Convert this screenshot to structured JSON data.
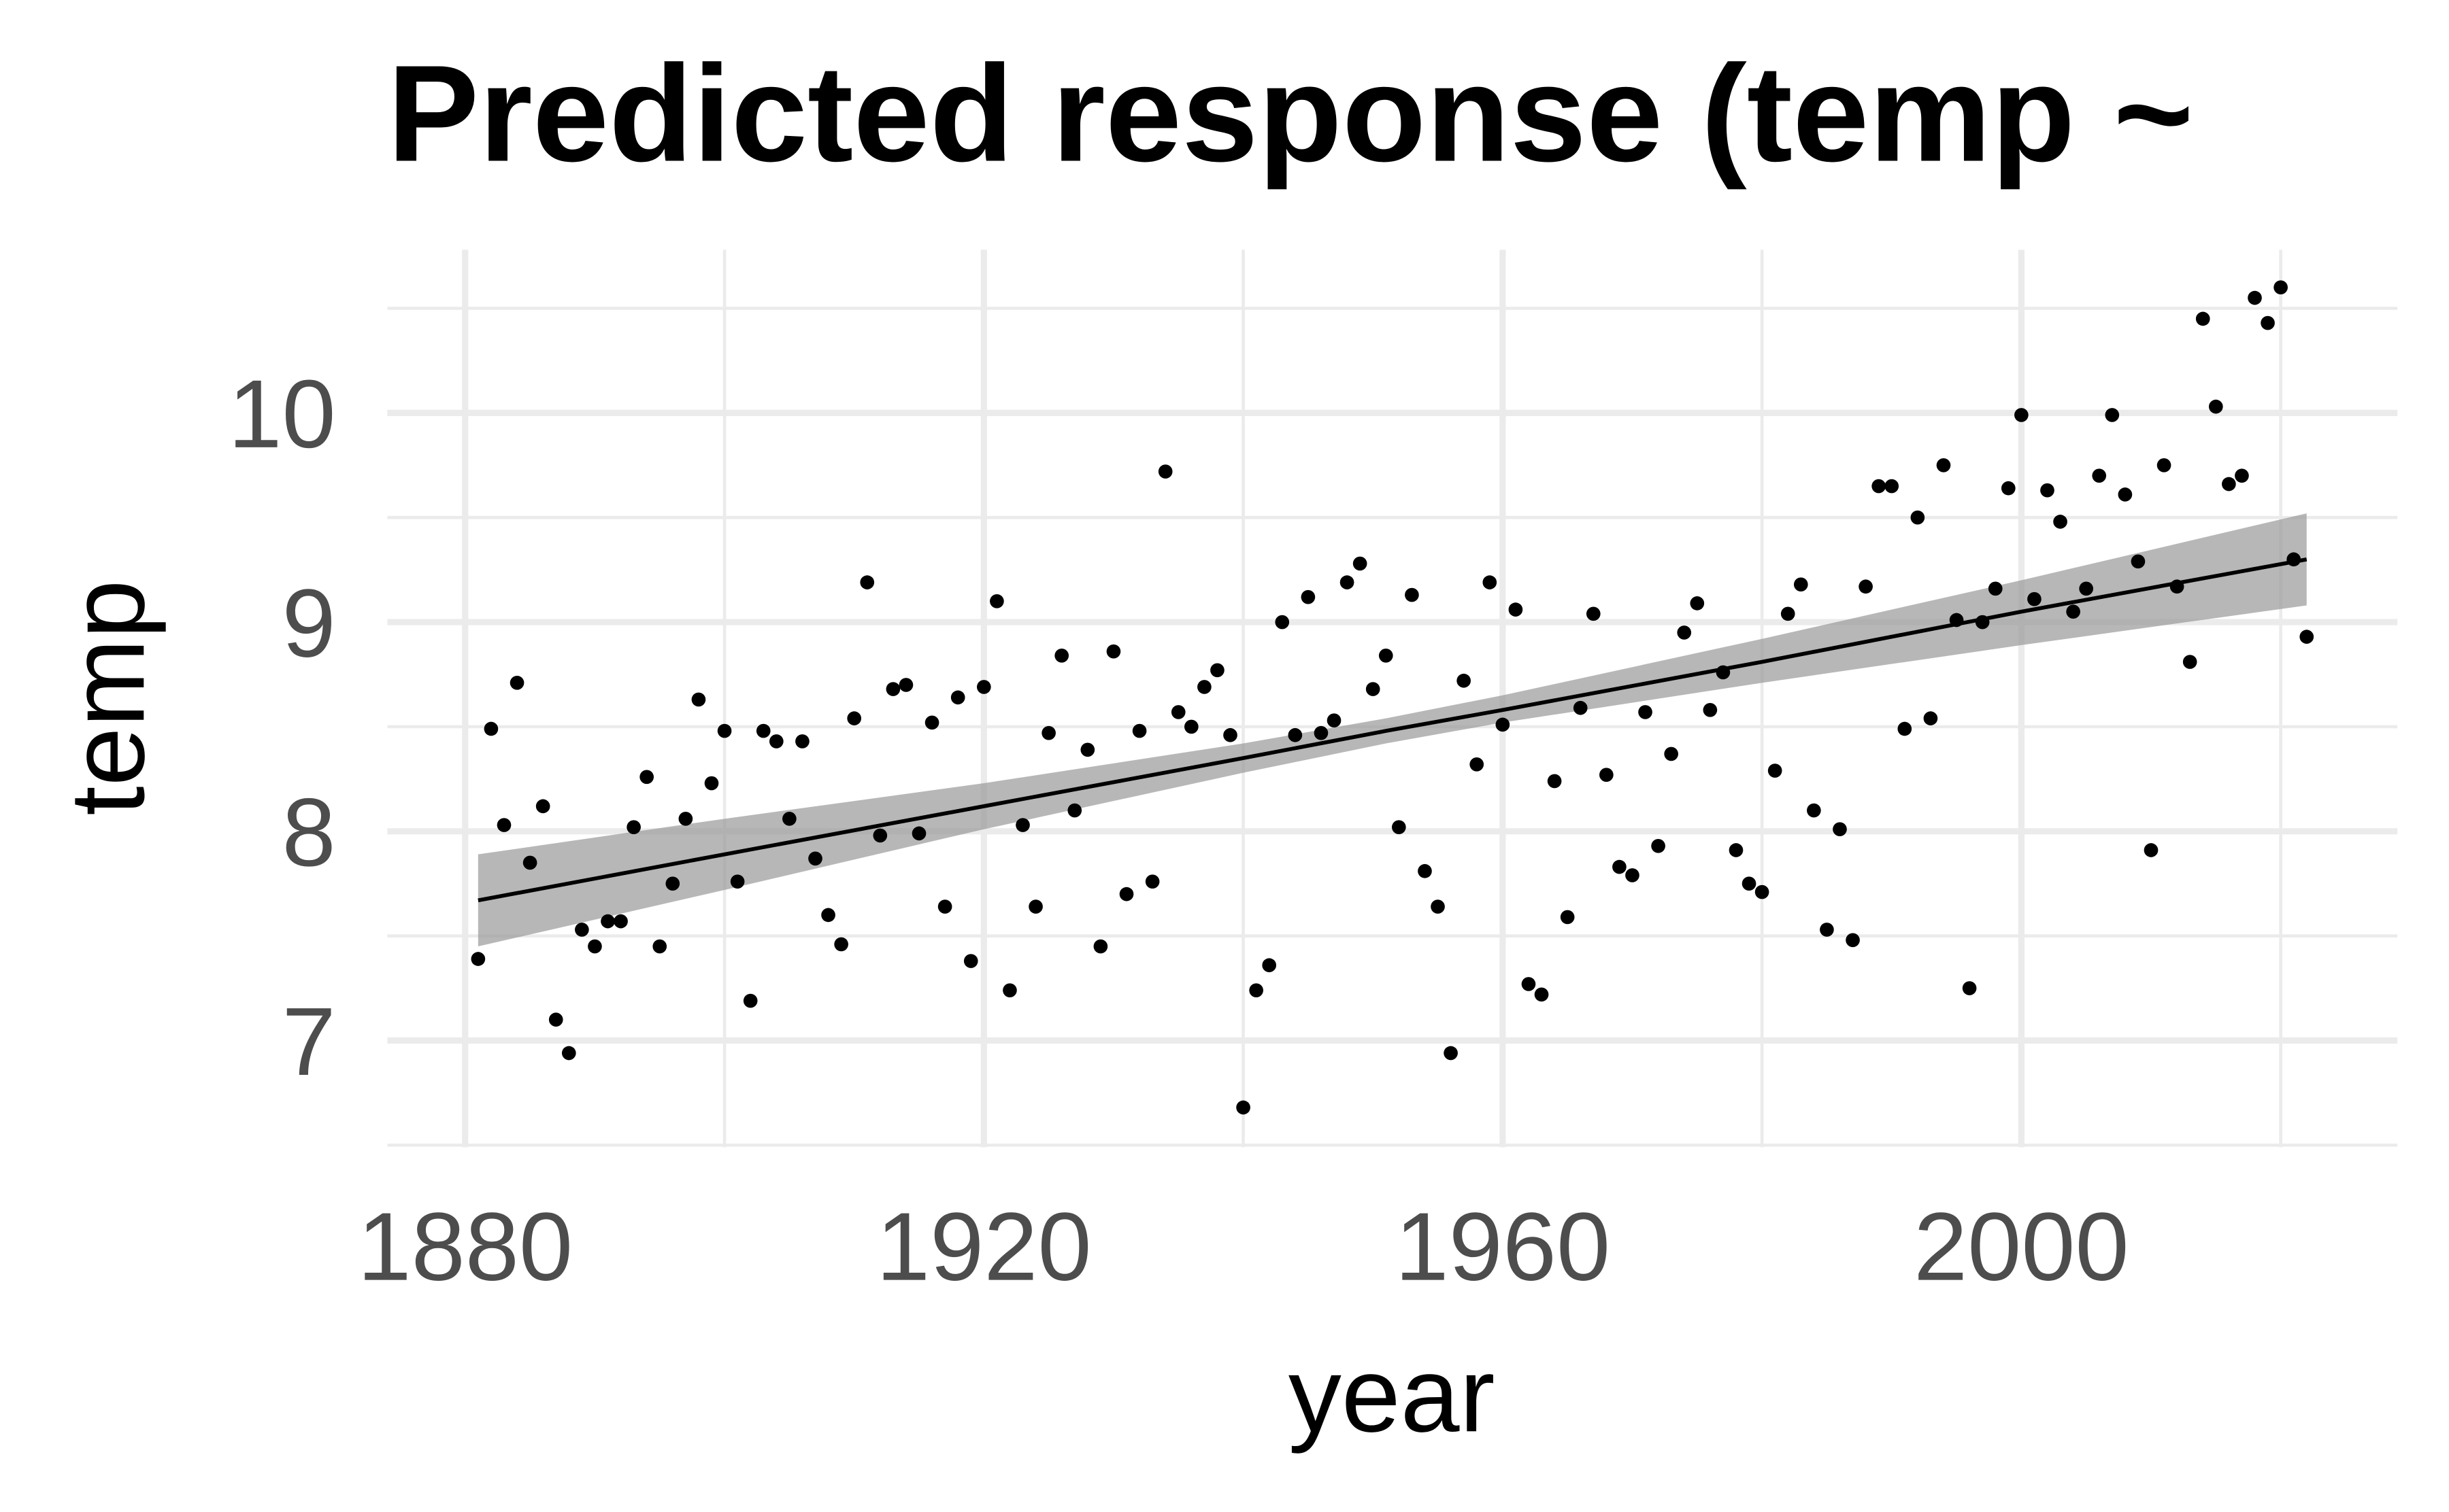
{
  "chart_data": {
    "type": "scatter",
    "title": "Predicted response (temp ~",
    "x_label": "year",
    "y_label": "temp",
    "x": [
      1881,
      1882,
      1883,
      1884,
      1885,
      1886,
      1887,
      1888,
      1889,
      1890,
      1891,
      1892,
      1893,
      1894,
      1895,
      1896,
      1897,
      1898,
      1899,
      1900,
      1901,
      1902,
      1903,
      1904,
      1905,
      1906,
      1907,
      1908,
      1909,
      1910,
      1911,
      1912,
      1913,
      1914,
      1915,
      1916,
      1917,
      1918,
      1919,
      1920,
      1921,
      1922,
      1923,
      1924,
      1925,
      1926,
      1927,
      1928,
      1929,
      1930,
      1931,
      1932,
      1933,
      1934,
      1935,
      1936,
      1937,
      1938,
      1939,
      1940,
      1941,
      1942,
      1943,
      1944,
      1945,
      1946,
      1947,
      1948,
      1949,
      1950,
      1951,
      1952,
      1953,
      1954,
      1955,
      1956,
      1957,
      1958,
      1959,
      1960,
      1961,
      1962,
      1963,
      1964,
      1965,
      1966,
      1967,
      1968,
      1969,
      1970,
      1971,
      1972,
      1973,
      1974,
      1975,
      1976,
      1977,
      1978,
      1979,
      1980,
      1981,
      1982,
      1983,
      1984,
      1985,
      1986,
      1987,
      1988,
      1989,
      1990,
      1991,
      1992,
      1993,
      1994,
      1995,
      1996,
      1997,
      1998,
      1999,
      2000,
      2001,
      2002,
      2003,
      2004,
      2005,
      2006,
      2007,
      2008,
      2009,
      2010,
      2011,
      2012,
      2013,
      2014,
      2015,
      2016,
      2017,
      2018,
      2019,
      2020,
      2021,
      2022
    ],
    "values": [
      7.39,
      8.49,
      8.03,
      8.71,
      7.85,
      8.12,
      7.1,
      6.94,
      7.53,
      7.45,
      7.57,
      7.57,
      8.02,
      8.26,
      7.45,
      7.75,
      8.06,
      8.63,
      8.23,
      8.48,
      7.76,
      7.19,
      8.48,
      8.43,
      8.06,
      8.43,
      7.87,
      7.6,
      7.46,
      8.54,
      9.19,
      7.98,
      8.68,
      8.7,
      7.99,
      8.52,
      7.64,
      8.64,
      7.38,
      8.69,
      9.1,
      7.24,
      8.03,
      7.64,
      8.47,
      8.84,
      8.1,
      8.39,
      7.45,
      8.86,
      7.7,
      8.48,
      7.76,
      9.72,
      8.57,
      8.5,
      8.69,
      8.77,
      8.46,
      6.68,
      7.24,
      7.36,
      9.0,
      8.46,
      9.12,
      8.47,
      8.53,
      9.19,
      9.28,
      8.68,
      8.84,
      8.02,
      9.13,
      7.81,
      7.64,
      6.94,
      8.72,
      8.32,
      9.19,
      8.51,
      9.06,
      7.27,
      7.22,
      8.24,
      7.59,
      8.59,
      9.04,
      8.27,
      7.83,
      7.79,
      8.57,
      7.93,
      8.37,
      8.95,
      9.09,
      8.58,
      8.76,
      7.91,
      7.75,
      7.71,
      8.29,
      9.04,
      9.18,
      8.1,
      7.53,
      8.01,
      7.48,
      9.17,
      9.65,
      9.65,
      8.49,
      9.5,
      8.54,
      9.75,
      9.01,
      7.25,
      9.0,
      9.16,
      9.64,
      9.99,
      9.11,
      9.63,
      9.48,
      9.05,
      9.16,
      9.7,
      9.99,
      9.61,
      9.29,
      7.91,
      9.75,
      9.17,
      8.81,
      10.45,
      10.03,
      9.66,
      9.7,
      10.55,
      10.43,
      10.6,
      9.3,
      8.93
    ],
    "color": "#000000",
    "fit": {
      "x": [
        1881,
        1900,
        1920,
        1940,
        1951,
        1960,
        1980,
        2000,
        2022
      ],
      "y": [
        7.67,
        7.89,
        8.12,
        8.35,
        8.48,
        8.58,
        8.81,
        9.05,
        9.3
      ],
      "lower": [
        7.45,
        7.72,
        8.01,
        8.28,
        8.42,
        8.52,
        8.71,
        8.89,
        9.08
      ],
      "upper": [
        7.89,
        8.06,
        8.23,
        8.42,
        8.54,
        8.65,
        8.92,
        9.2,
        9.52
      ],
      "color": "#000000",
      "ribbon_color": "#999999"
    },
    "xlim": [
      1874,
      2029
    ],
    "ylim": [
      6.49,
      10.78
    ],
    "xticks": [
      1880,
      1920,
      1960,
      2000
    ],
    "yticks": [
      7,
      8,
      9,
      10
    ],
    "x_minor_ticks": [
      1900,
      1940,
      1980,
      2020
    ],
    "y_minor_ticks": [
      6.5,
      7.5,
      8.5,
      9.5,
      10.5
    ],
    "grid": true
  }
}
